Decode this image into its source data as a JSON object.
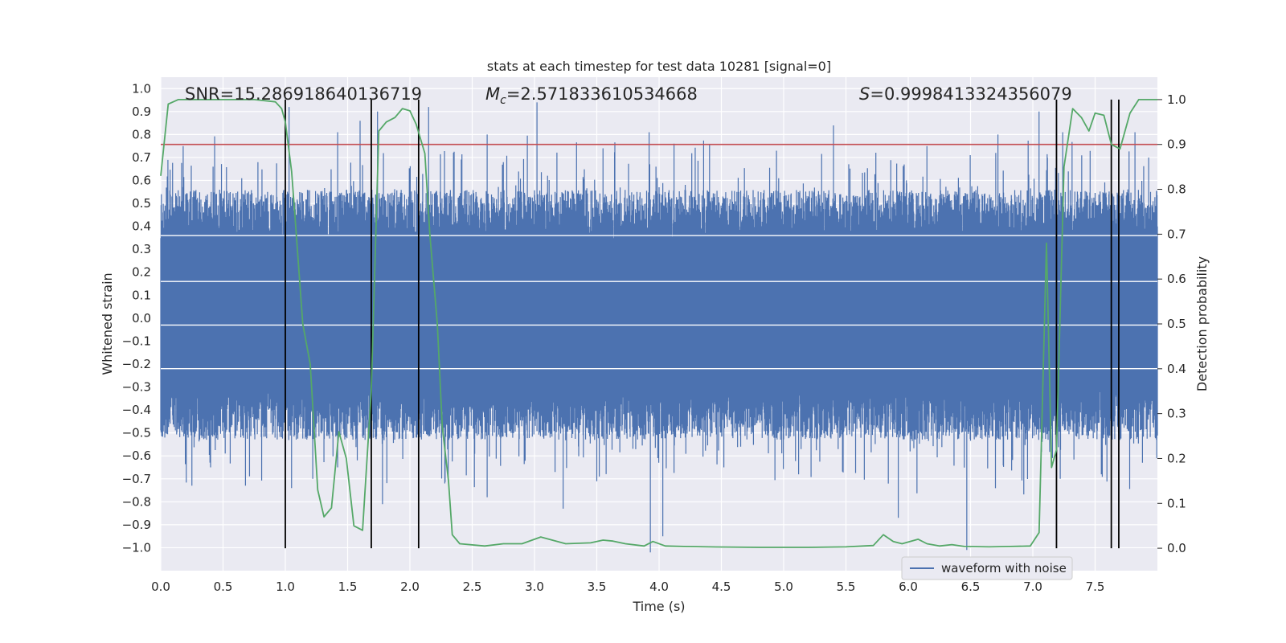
{
  "chart_data": {
    "type": "line",
    "title": "stats at each timestep for test data 10281 [signal=0]",
    "xlabel": "Time (s)",
    "ylabel": "Whitened strain",
    "y2label": "Detection probability",
    "xlim": [
      0,
      8
    ],
    "ylim": [
      -1.1,
      1.05
    ],
    "y2lim": [
      -0.05,
      1.05
    ],
    "x_ticks": [
      "0.0",
      "0.5",
      "1.0",
      "1.5",
      "2.0",
      "2.5",
      "3.0",
      "3.5",
      "4.0",
      "4.5",
      "5.0",
      "5.5",
      "6.0",
      "6.5",
      "7.0",
      "7.5"
    ],
    "y_ticks": [
      "1.0",
      "0.9",
      "0.8",
      "0.7",
      "0.6",
      "0.5",
      "0.4",
      "0.3",
      "0.2",
      "0.1",
      "0.0",
      "-0.1",
      "-0.2",
      "-0.3",
      "-0.4",
      "-0.5",
      "-0.6",
      "-0.7",
      "-0.8",
      "-0.9",
      "-1.0"
    ],
    "y2_ticks": [
      "1.0",
      "0.9",
      "0.8",
      "0.7",
      "0.6",
      "0.5",
      "0.4",
      "0.3",
      "0.2",
      "0.1",
      "0.0"
    ],
    "grid": true,
    "legend": {
      "position": "bottom-right",
      "entries": [
        "waveform with noise"
      ]
    },
    "annotations": {
      "snr": "SNR=15.286918640136719",
      "mc_symbol": "M",
      "mc_sub": "c",
      "mc_value": "=2.571833610534668",
      "s_symbol": "S",
      "s_value": "=0.9998413324356079"
    },
    "threshold": 0.9,
    "vertical_lines": [
      1.0,
      1.69,
      2.07,
      7.19,
      7.63,
      7.69
    ],
    "waveform": {
      "name": "waveform with noise",
      "color": "#4c72b0",
      "core_band": [
        -0.42,
        0.45
      ],
      "spikes": [
        [
          0.18,
          0.75
        ],
        [
          0.42,
          0.66
        ],
        [
          0.65,
          0.61
        ],
        [
          0.78,
          0.68
        ],
        [
          0.93,
          0.66
        ],
        [
          1.03,
          0.92
        ],
        [
          1.42,
          0.81
        ],
        [
          1.6,
          0.86
        ],
        [
          1.74,
          0.9
        ],
        [
          2.15,
          0.92
        ],
        [
          2.62,
          0.8
        ],
        [
          3.02,
          0.94
        ],
        [
          3.55,
          0.74
        ],
        [
          3.92,
          0.81
        ],
        [
          4.12,
          0.76
        ],
        [
          5.4,
          0.84
        ],
        [
          6.15,
          0.75
        ],
        [
          6.72,
          0.8
        ],
        [
          7.05,
          0.9
        ],
        [
          7.24,
          0.81
        ],
        [
          7.82,
          0.81
        ],
        [
          7.93,
          0.7
        ],
        [
          0.25,
          -0.73
        ],
        [
          0.4,
          -0.65
        ],
        [
          0.68,
          -0.73
        ],
        [
          1.05,
          -0.74
        ],
        [
          1.22,
          -0.7
        ],
        [
          1.42,
          -0.65
        ],
        [
          1.78,
          -0.81
        ],
        [
          2.28,
          -0.72
        ],
        [
          2.62,
          -0.78
        ],
        [
          3.23,
          -0.83
        ],
        [
          3.52,
          -0.69
        ],
        [
          3.93,
          -1.02
        ],
        [
          4.03,
          -0.95
        ],
        [
          4.52,
          -0.65
        ],
        [
          5.12,
          -0.68
        ],
        [
          5.92,
          -0.87
        ],
        [
          6.47,
          -1.01
        ],
        [
          7.22,
          -0.7
        ],
        [
          7.55,
          -0.68
        ],
        [
          7.88,
          -0.63
        ]
      ]
    },
    "detection_probability": {
      "color": "#55a868",
      "x": [
        0.0,
        0.06,
        0.14,
        0.25,
        0.5,
        0.75,
        0.92,
        0.97,
        1.0,
        1.05,
        1.08,
        1.14,
        1.2,
        1.26,
        1.31,
        1.37,
        1.43,
        1.49,
        1.55,
        1.62,
        1.69,
        1.75,
        1.81,
        1.88,
        1.94,
        2.0,
        2.05,
        2.12,
        2.16,
        2.22,
        2.26,
        2.31,
        2.34,
        2.4,
        2.6,
        2.75,
        2.9,
        3.05,
        3.25,
        3.45,
        3.55,
        3.63,
        3.73,
        3.88,
        3.95,
        4.05,
        4.2,
        4.4,
        4.8,
        5.2,
        5.5,
        5.72,
        5.8,
        5.88,
        5.95,
        6.08,
        6.15,
        6.25,
        6.35,
        6.45,
        6.65,
        6.82,
        6.98,
        7.05,
        7.11,
        7.15,
        7.19,
        7.25,
        7.32,
        7.39,
        7.45,
        7.5,
        7.57,
        7.63,
        7.7,
        7.78,
        7.85,
        8.0
      ],
      "y": [
        0.83,
        0.99,
        1.0,
        1.0,
        1.0,
        1.0,
        0.995,
        0.98,
        0.95,
        0.84,
        0.73,
        0.5,
        0.41,
        0.13,
        0.07,
        0.09,
        0.26,
        0.2,
        0.05,
        0.04,
        0.35,
        0.93,
        0.95,
        0.96,
        0.98,
        0.975,
        0.945,
        0.88,
        0.7,
        0.5,
        0.27,
        0.15,
        0.03,
        0.01,
        0.005,
        0.01,
        0.01,
        0.025,
        0.01,
        0.012,
        0.018,
        0.016,
        0.01,
        0.005,
        0.015,
        0.005,
        0.004,
        0.003,
        0.002,
        0.002,
        0.003,
        0.006,
        0.03,
        0.015,
        0.01,
        0.02,
        0.01,
        0.005,
        0.008,
        0.004,
        0.003,
        0.004,
        0.005,
        0.035,
        0.68,
        0.18,
        0.22,
        0.85,
        0.98,
        0.96,
        0.93,
        0.97,
        0.965,
        0.9,
        0.89,
        0.97,
        1.0,
        1.0
      ]
    },
    "horizontal_grid_overlay": [
      0.36,
      0.16,
      -0.03,
      -0.22
    ]
  }
}
